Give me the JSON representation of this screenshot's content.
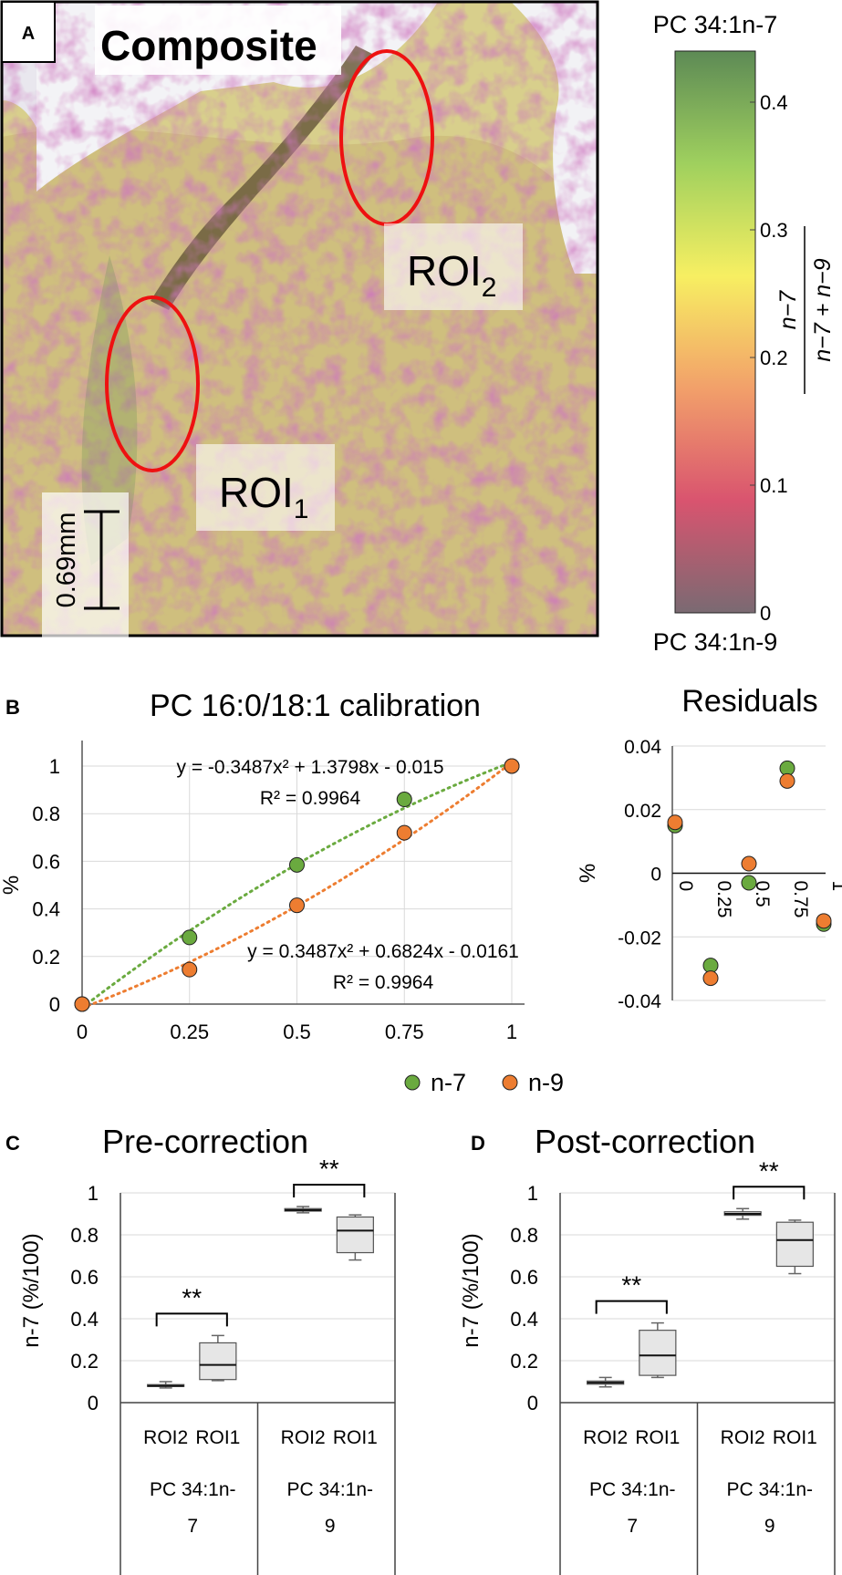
{
  "panelA": {
    "letter": "A",
    "title": "Composite",
    "roi2_base": "ROI",
    "roi2_sub": "2",
    "roi1_base": "ROI",
    "roi1_sub": "1",
    "scalebar": "0.69mm",
    "colorbar": {
      "top_label": "PC 34:1n-7",
      "bottom_label": "PC 34:1n-9",
      "ticks": [
        0,
        0.1,
        0.2,
        0.3,
        0.4
      ],
      "range": [
        0,
        0.44
      ],
      "formula_num": "n−7",
      "formula_den": "n−7 + n−9",
      "colors": [
        "#7a6a72",
        "#d9546f",
        "#f2a06a",
        "#f7ef62",
        "#9fd05e",
        "#5d8a55"
      ]
    }
  },
  "panelB": {
    "letter": "B",
    "colors": {
      "n7": "#6aaa3f",
      "n9": "#ed7d31"
    },
    "legend": [
      "n-7",
      "n-9"
    ],
    "chart_data": [
      {
        "type": "scatter",
        "title": "PC 16:0/18:1 calibration",
        "xlabel": "",
        "ylabel": "%",
        "xlim": [
          0,
          1
        ],
        "ylim": [
          0,
          1
        ],
        "xticks": [
          0,
          0.25,
          0.5,
          0.75,
          1
        ],
        "xtick_labels": [
          "0",
          "0.25",
          "0.5",
          "0.75",
          "1"
        ],
        "yticks": [
          0,
          0.2,
          0.4,
          0.6,
          0.8,
          1
        ],
        "ytick_labels": [
          "0",
          "0.2",
          "0.4",
          "0.6",
          "0.8",
          "1"
        ],
        "series": [
          {
            "name": "n-7",
            "x": [
              0,
              0.25,
              0.5,
              0.75,
              1
            ],
            "y": [
              0,
              0.28,
              0.585,
              0.86,
              1
            ],
            "trend": [
              -0.3487,
              1.3798,
              -0.015
            ],
            "equation": "y = -0.3487x² + 1.3798x - 0.015",
            "r2": "R² = 0.9964"
          },
          {
            "name": "n-9",
            "x": [
              0,
              0.25,
              0.5,
              0.75,
              1
            ],
            "y": [
              0,
              0.145,
              0.415,
              0.72,
              1
            ],
            "trend": [
              0.3487,
              0.6824,
              -0.0161
            ],
            "equation": "y = 0.3487x² + 0.6824x - 0.0161",
            "r2": "R² = 0.9964"
          }
        ]
      },
      {
        "type": "scatter",
        "title": "Residuals",
        "ylabel": "%",
        "xlim": [
          0,
          1
        ],
        "ylim": [
          -0.04,
          0.04
        ],
        "xticks": [
          0,
          0.25,
          0.5,
          0.75,
          1
        ],
        "xtick_labels": [
          "0",
          "0.25",
          "0.5",
          "0.75",
          "1"
        ],
        "yticks": [
          -0.04,
          -0.02,
          0,
          0.02,
          0.04
        ],
        "ytick_labels": [
          "-0.04",
          "-0.02",
          "0",
          "0.02",
          "0.04"
        ],
        "series": [
          {
            "name": "n-7",
            "x": [
              0,
              0.25,
              0.5,
              0.75,
              1
            ],
            "y": [
              0.015,
              -0.029,
              -0.003,
              0.033,
              -0.016
            ]
          },
          {
            "name": "n-9",
            "x": [
              0,
              0.25,
              0.5,
              0.75,
              1
            ],
            "y": [
              0.016,
              -0.033,
              0.003,
              0.029,
              -0.015
            ]
          }
        ]
      }
    ]
  },
  "panelC": {
    "letter": "C",
    "chart_data": {
      "type": "box",
      "title": "Pre-correction",
      "ylabel": "n-7 (%/100)",
      "ylim": [
        0,
        1
      ],
      "yticks": [
        0,
        0.2,
        0.4,
        0.6,
        0.8,
        1
      ],
      "ytick_labels": [
        "0",
        "0.2",
        "0.4",
        "0.6",
        "0.8",
        "1"
      ],
      "groups": [
        {
          "label": "PC 34:1n-7",
          "label_lines": [
            "PC 34:1n-",
            "7"
          ],
          "boxes": [
            {
              "label": "ROI2",
              "min": 0.07,
              "q1": 0.077,
              "median": 0.08,
              "q3": 0.086,
              "max": 0.1
            },
            {
              "label": "ROI1",
              "min": 0.105,
              "q1": 0.11,
              "median": 0.18,
              "q3": 0.285,
              "max": 0.32
            }
          ],
          "significance": "**"
        },
        {
          "label": "PC 34:1n-9",
          "label_lines": [
            "PC 34:1n-",
            "9"
          ],
          "boxes": [
            {
              "label": "ROI2",
              "min": 0.905,
              "q1": 0.913,
              "median": 0.918,
              "q3": 0.925,
              "max": 0.935
            },
            {
              "label": "ROI1",
              "min": 0.68,
              "q1": 0.715,
              "median": 0.82,
              "q3": 0.885,
              "max": 0.895
            }
          ],
          "significance": "**"
        }
      ]
    }
  },
  "panelD": {
    "letter": "D",
    "chart_data": {
      "type": "box",
      "title": "Post-correction",
      "ylabel": "n-7 (%/100)",
      "ylim": [
        0,
        1
      ],
      "yticks": [
        0,
        0.2,
        0.4,
        0.6,
        0.8,
        1
      ],
      "ytick_labels": [
        "0",
        "0.2",
        "0.4",
        "0.6",
        "0.8",
        "1"
      ],
      "groups": [
        {
          "label": "PC 34:1n-7",
          "label_lines": [
            "PC 34:1n-",
            "7"
          ],
          "boxes": [
            {
              "label": "ROI2",
              "min": 0.075,
              "q1": 0.088,
              "median": 0.095,
              "q3": 0.103,
              "max": 0.12
            },
            {
              "label": "ROI1",
              "min": 0.12,
              "q1": 0.13,
              "median": 0.225,
              "q3": 0.345,
              "max": 0.38
            }
          ],
          "significance": "**"
        },
        {
          "label": "PC 34:1n-9",
          "label_lines": [
            "PC 34:1n-",
            "9"
          ],
          "boxes": [
            {
              "label": "ROI2",
              "min": 0.875,
              "q1": 0.893,
              "median": 0.9,
              "q3": 0.91,
              "max": 0.925
            },
            {
              "label": "ROI1",
              "min": 0.615,
              "q1": 0.65,
              "median": 0.775,
              "q3": 0.86,
              "max": 0.87
            }
          ],
          "significance": "**"
        }
      ]
    }
  }
}
